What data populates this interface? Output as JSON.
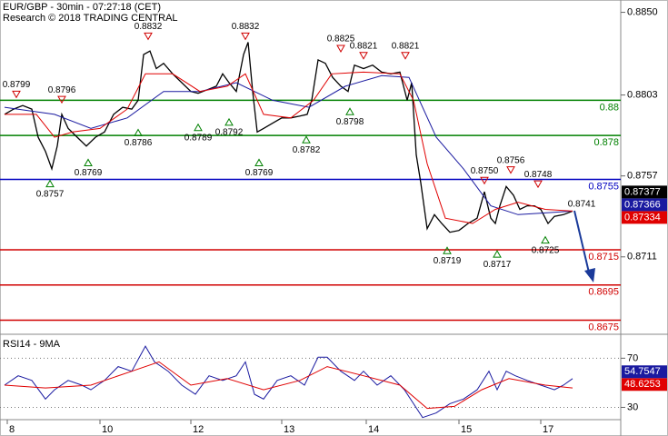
{
  "chart_data": [
    {
      "type": "line",
      "title": "EUR/GBP - 30min - 07:27:18 (CET)",
      "subtitle": "Research © 2018 TRADING CENTRAL",
      "xlim": [
        0,
        341.5
      ],
      "ylim": [
        0.8667,
        0.8857
      ],
      "yticks": [
        {
          "value": 0.885,
          "label": "0.8850"
        },
        0.8803,
        0.8757,
        0.8711
      ],
      "grid": false,
      "levels": [
        {
          "value": 0.88,
          "color": "#008000"
        },
        {
          "value": 0.878,
          "color": "#008000"
        },
        {
          "value": 0.8755,
          "color": "#0000c0"
        },
        {
          "value": 0.8715,
          "color": "#d00000"
        },
        {
          "value": 0.8695,
          "color": "#d00000"
        },
        {
          "value": 0.8675,
          "color": "#d00000"
        }
      ],
      "series": [
        {
          "color": "#000000",
          "last_value": 0.87377,
          "x": [
            2.5,
            7.5,
            12.5,
            17.5,
            21,
            25,
            28.5,
            31.5,
            34,
            37.5,
            42.5,
            47.5,
            52.5,
            57.5,
            62.5,
            67.5,
            72.5,
            76,
            79,
            82.5,
            86,
            90,
            95,
            100,
            105,
            109,
            114,
            119,
            122.5,
            126,
            130,
            134,
            136.5,
            139,
            141.5,
            145,
            150,
            155,
            160,
            165,
            169,
            171.5,
            175,
            179,
            183,
            187.5,
            191.5,
            195,
            200,
            205,
            210,
            215,
            220,
            224,
            226.5,
            229,
            231.5,
            235,
            239,
            243,
            247.5,
            252.5,
            257.5,
            262.5,
            266.5,
            270,
            272.5,
            275,
            278.5,
            282.5,
            286,
            290,
            294,
            297.5,
            301.5,
            305,
            310,
            315
          ],
          "values": [
            0.8792,
            0.8795,
            0.8797,
            0.8795,
            0.8779,
            0.8771,
            0.8761,
            0.8774,
            0.8792,
            0.8784,
            0.8779,
            0.8774,
            0.8779,
            0.8782,
            0.8792,
            0.8796,
            0.8795,
            0.88,
            0.8826,
            0.8828,
            0.8818,
            0.8821,
            0.8815,
            0.881,
            0.8805,
            0.8804,
            0.8806,
            0.8808,
            0.8815,
            0.881,
            0.8805,
            0.8826,
            0.8833,
            0.8805,
            0.8782,
            0.8784,
            0.8787,
            0.879,
            0.879,
            0.8791,
            0.8792,
            0.88,
            0.8823,
            0.8821,
            0.8813,
            0.8808,
            0.8805,
            0.882,
            0.8818,
            0.882,
            0.8816,
            0.8815,
            0.8816,
            0.88,
            0.881,
            0.8769,
            0.8753,
            0.8727,
            0.8735,
            0.873,
            0.8725,
            0.8726,
            0.873,
            0.8733,
            0.8748,
            0.8733,
            0.873,
            0.874,
            0.8751,
            0.8746,
            0.8738,
            0.874,
            0.874,
            0.8738,
            0.873,
            0.8734,
            0.8735,
            0.8737
          ]
        },
        {
          "color": "#1a1aa0",
          "last_value": 0.87366,
          "x": [
            2.5,
            30,
            50,
            70,
            90,
            110,
            130,
            150,
            170,
            190,
            210,
            225,
            240,
            255,
            270,
            285,
            300,
            315
          ],
          "values": [
            0.8796,
            0.8792,
            0.8784,
            0.879,
            0.8805,
            0.8805,
            0.881,
            0.88,
            0.8796,
            0.8808,
            0.8814,
            0.8813,
            0.8779,
            0.8761,
            0.874,
            0.8735,
            0.8736,
            0.8737
          ]
        },
        {
          "color": "#e00000",
          "last_value": 0.87334,
          "x": [
            2.5,
            20,
            30,
            40,
            55,
            70,
            80,
            95,
            110,
            125,
            135,
            145,
            160,
            172.5,
            182.5,
            200,
            220,
            227.5,
            235,
            245,
            260,
            272.5,
            285,
            300,
            315
          ],
          "values": [
            0.8792,
            0.8792,
            0.8779,
            0.8782,
            0.8784,
            0.8795,
            0.8815,
            0.8815,
            0.8805,
            0.8808,
            0.8815,
            0.8792,
            0.879,
            0.88,
            0.8815,
            0.8816,
            0.8815,
            0.88,
            0.8764,
            0.8733,
            0.873,
            0.8738,
            0.8742,
            0.8738,
            0.8737
          ]
        }
      ],
      "highs": [
        {
          "x": 9,
          "value": 0.8799
        },
        {
          "x": 34,
          "value": 0.8796
        },
        {
          "x": 81.5,
          "value": 0.8832
        },
        {
          "x": 135,
          "value": 0.8832
        },
        {
          "x": 187.5,
          "value": 0.8825
        },
        {
          "x": 200,
          "value": 0.8821
        },
        {
          "x": 223,
          "value": 0.8821
        },
        {
          "x": 266.5,
          "value": 0.875,
          "label": "0.8750"
        },
        {
          "x": 281,
          "value": 0.8756
        },
        {
          "x": 296,
          "value": 0.8748
        }
      ],
      "lows": [
        {
          "x": 27.5,
          "value": 0.8757
        },
        {
          "x": 48.5,
          "value": 0.8769
        },
        {
          "x": 76,
          "value": 0.8786
        },
        {
          "x": 109,
          "value": 0.8789
        },
        {
          "x": 126,
          "value": 0.8792
        },
        {
          "x": 142.5,
          "value": 0.8769
        },
        {
          "x": 168.5,
          "value": 0.8782
        },
        {
          "x": 192.5,
          "value": 0.8798
        },
        {
          "x": 246,
          "value": 0.8719
        },
        {
          "x": 273.5,
          "value": 0.8717
        },
        {
          "x": 300,
          "value": 0.8725
        }
      ],
      "labels": [
        {
          "x": 320,
          "value": 0.8741
        }
      ]
    },
    {
      "type": "line",
      "title": "RSI14 - 9MA",
      "xlim": [
        0,
        341.5
      ],
      "ylim": [
        20,
        88
      ],
      "yticks": [
        70,
        30
      ],
      "grid": true,
      "xticks": [
        {
          "value": 4,
          "label": "8"
        },
        {
          "value": 55,
          "label": "10"
        },
        {
          "value": 105,
          "label": "12"
        },
        {
          "value": 155,
          "label": "13"
        },
        {
          "value": 201.5,
          "label": "14"
        },
        {
          "value": 252.5,
          "label": "15"
        },
        {
          "value": 297.5,
          "label": "17"
        }
      ],
      "series": [
        {
          "color": "#1a1aa0",
          "last_value": 54.7547,
          "x": [
            2.5,
            10,
            17.5,
            25,
            30,
            37.5,
            45,
            50,
            57.5,
            65,
            72.5,
            80,
            85,
            92.5,
            100,
            107.5,
            115,
            122.5,
            130,
            135,
            140,
            145,
            152.5,
            160,
            167.5,
            175,
            180,
            187.5,
            195,
            200,
            207.5,
            215,
            222.5,
            227.5,
            232.5,
            240,
            247.5,
            255,
            262.5,
            269,
            273.5,
            278.5,
            283.5,
            290,
            297.5,
            305,
            310,
            315
          ],
          "values": [
            48.1,
            55.7,
            51.9,
            36.8,
            44.3,
            51.9,
            48.1,
            44.3,
            51.9,
            63.2,
            59.4,
            79.8,
            67.0,
            59.4,
            48.1,
            40.6,
            55.7,
            51.9,
            55.7,
            67.0,
            40.6,
            36.8,
            51.9,
            55.7,
            48.1,
            70.8,
            70.8,
            59.4,
            51.9,
            59.4,
            48.1,
            55.7,
            44.3,
            33.0,
            21.7,
            25.5,
            33.0,
            36.8,
            44.3,
            59.4,
            44.3,
            59.4,
            55.7,
            51.9,
            48.1,
            44.3,
            48.1,
            53.4
          ]
        },
        {
          "color": "#e00000",
          "last_value": 48.6253,
          "x": [
            2.5,
            25,
            50,
            72.5,
            87.5,
            105,
            125,
            145,
            165,
            180,
            200,
            220,
            235,
            250,
            265,
            280,
            300,
            315
          ],
          "values": [
            48.1,
            45.8,
            48.1,
            59.4,
            67.0,
            48.1,
            53.4,
            44.3,
            51.9,
            63.2,
            55.7,
            48.1,
            29.2,
            30.8,
            44.3,
            53.4,
            48.1,
            45.8
          ]
        }
      ]
    }
  ]
}
